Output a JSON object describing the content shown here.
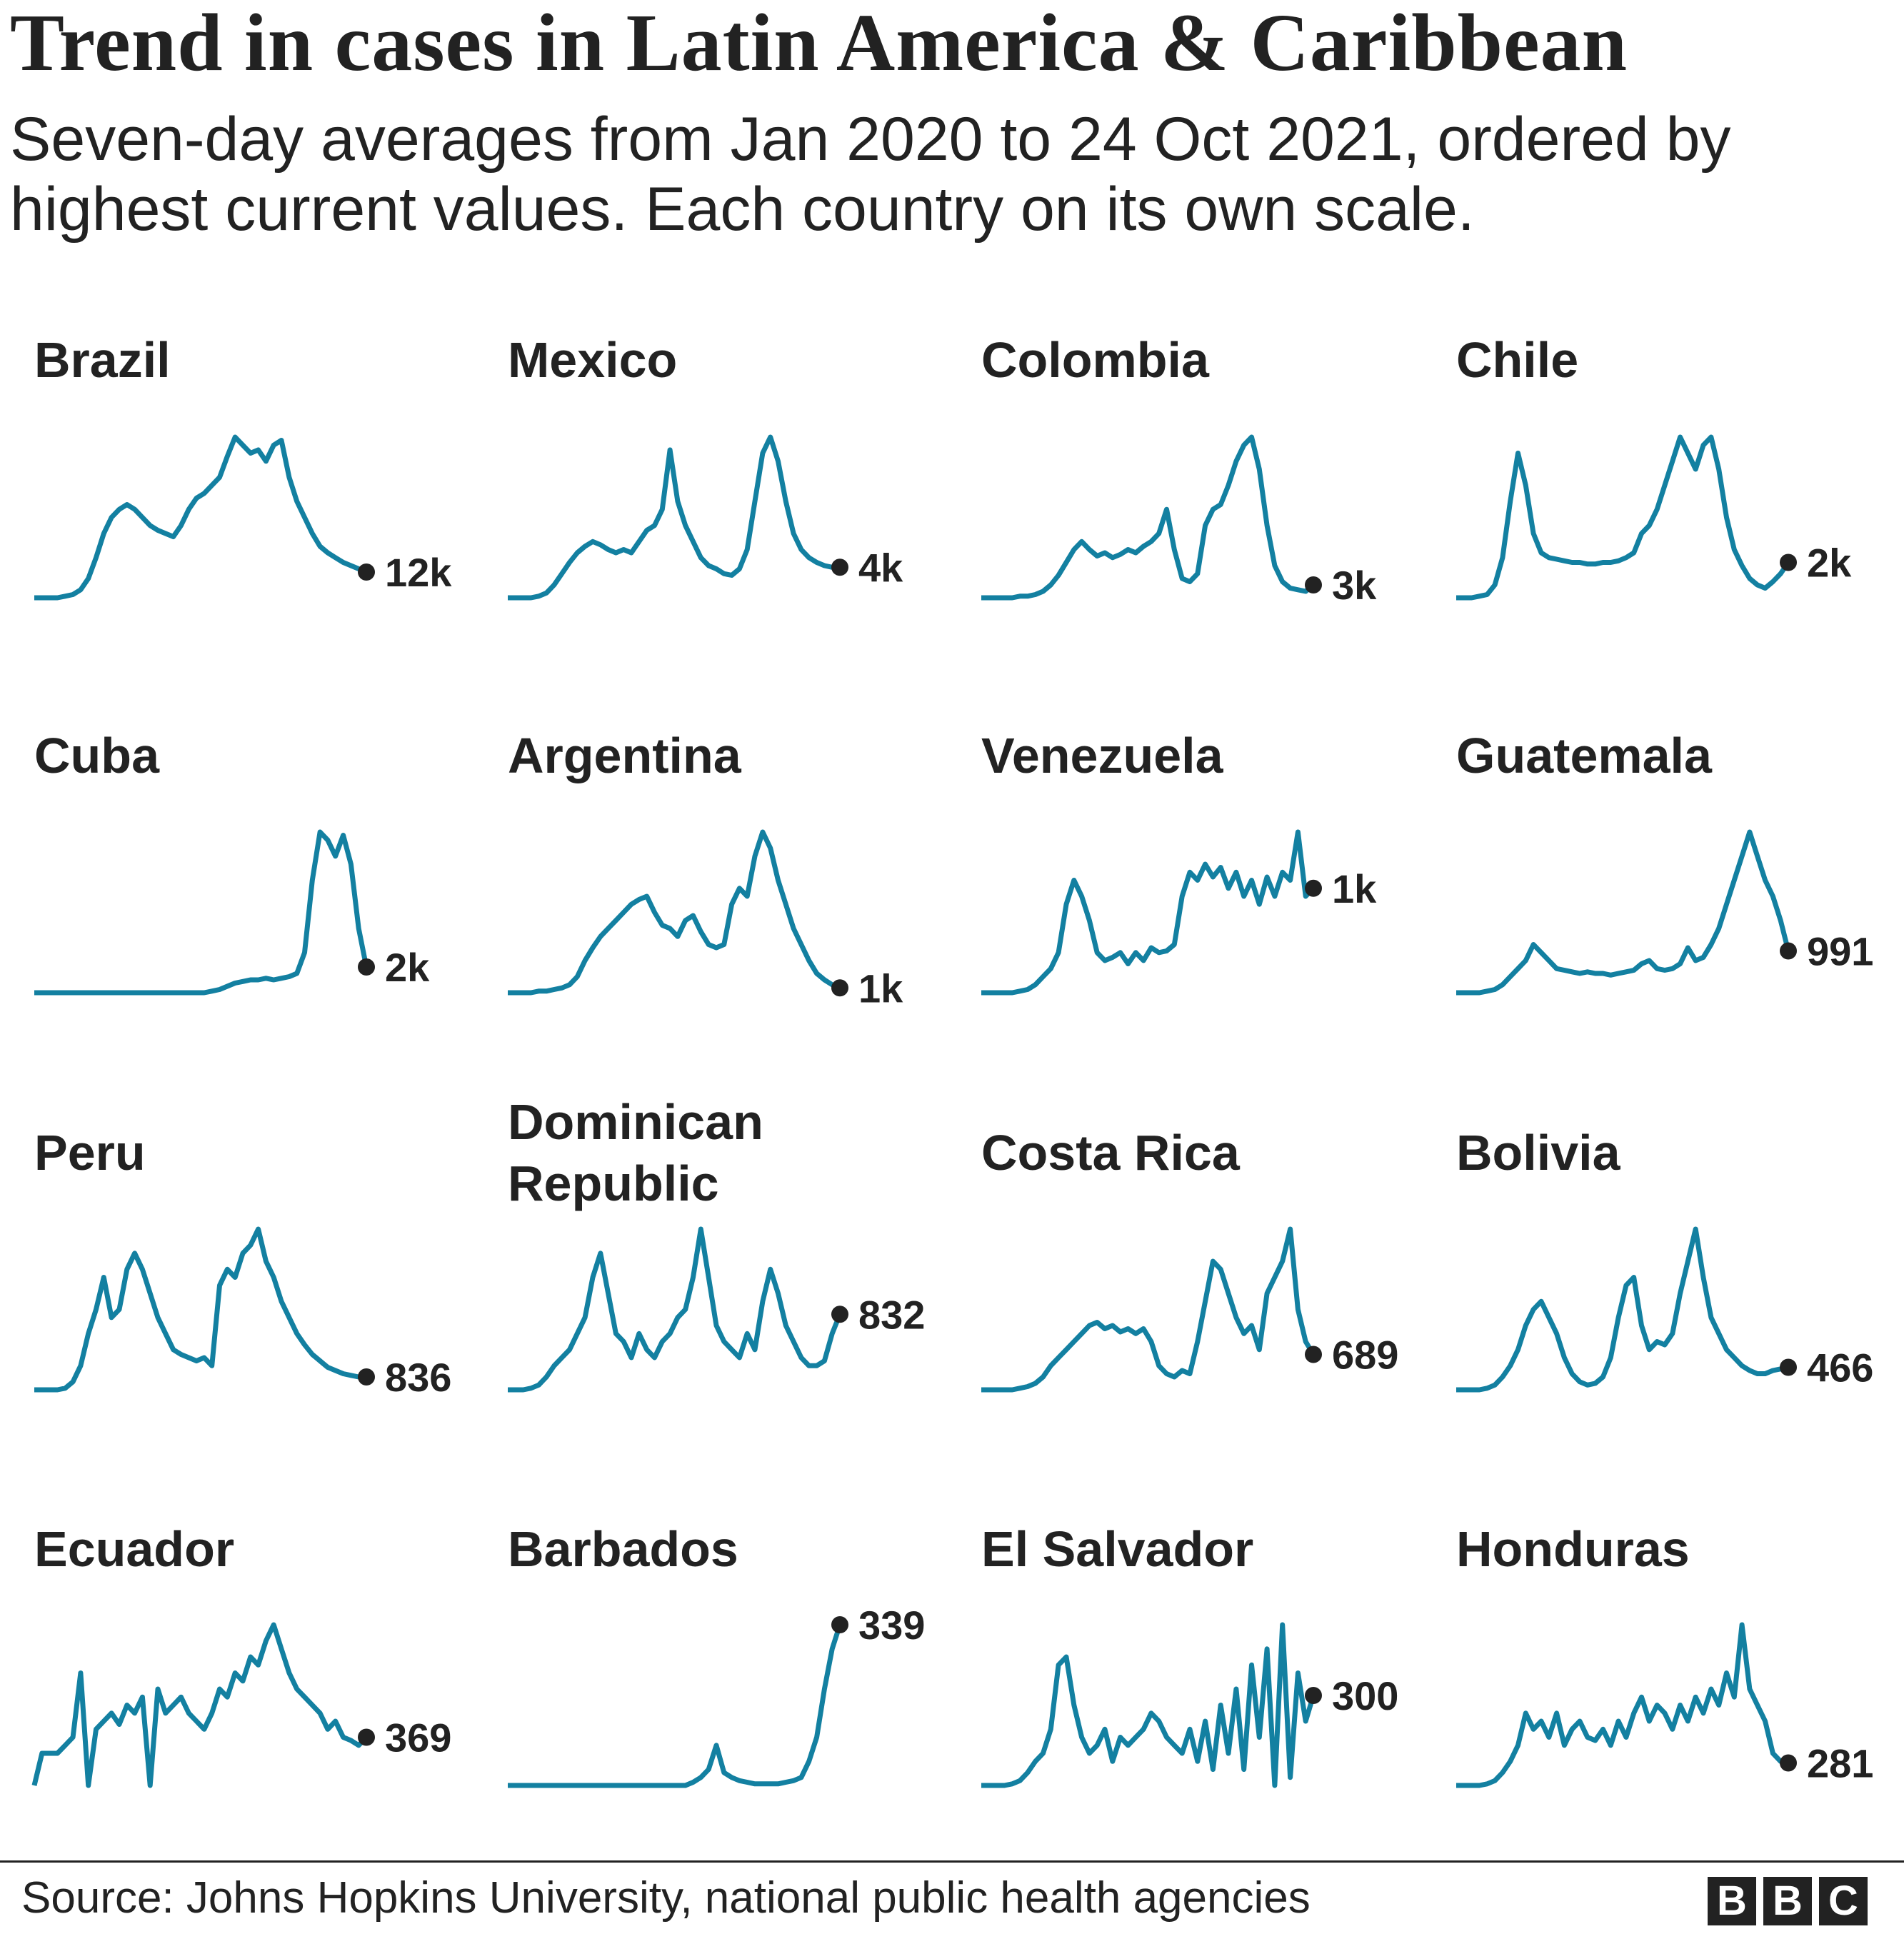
{
  "title": "Trend in cases in Latin America & Caribbean",
  "subtitle": "Seven-day averages from Jan 2020 to 24 Oct 2021, ordered by highest current values. Each country on its own scale.",
  "source": "Source: Johns Hopkins University, national public health agencies",
  "logo": [
    "B",
    "B",
    "C"
  ],
  "line_color": "#1380A1",
  "dot_color": "#222222",
  "chart_data": {
    "type": "line",
    "layout": "small-multiples 4x4",
    "x_range": [
      "Jan 2020",
      "24 Oct 2021"
    ],
    "grid": false,
    "series": [
      {
        "name": "Brazil",
        "latest_label": "12k",
        "values": [
          0,
          0,
          0,
          0,
          1,
          2,
          5,
          12,
          25,
          40,
          50,
          55,
          58,
          55,
          50,
          45,
          42,
          40,
          38,
          45,
          55,
          62,
          65,
          70,
          75,
          88,
          100,
          95,
          90,
          92,
          85,
          95,
          98,
          75,
          60,
          50,
          40,
          32,
          28,
          25,
          22,
          20,
          18,
          16
        ]
      },
      {
        "name": "Mexico",
        "latest_label": "4k",
        "values": [
          0,
          0,
          0,
          0,
          1,
          3,
          8,
          15,
          22,
          28,
          32,
          35,
          33,
          30,
          28,
          30,
          28,
          35,
          42,
          45,
          55,
          92,
          60,
          45,
          35,
          25,
          20,
          18,
          15,
          14,
          18,
          30,
          60,
          90,
          100,
          85,
          60,
          40,
          30,
          25,
          22,
          20,
          19,
          19
        ]
      },
      {
        "name": "Colombia",
        "latest_label": "3k",
        "values": [
          0,
          0,
          0,
          0,
          0,
          1,
          1,
          2,
          4,
          8,
          14,
          22,
          30,
          35,
          30,
          26,
          28,
          25,
          27,
          30,
          28,
          32,
          35,
          40,
          55,
          30,
          12,
          10,
          15,
          45,
          55,
          58,
          70,
          85,
          95,
          100,
          80,
          45,
          20,
          10,
          6,
          5,
          4,
          8
        ]
      },
      {
        "name": "Chile",
        "latest_label": "2k",
        "values": [
          0,
          0,
          0,
          1,
          2,
          8,
          25,
          60,
          90,
          70,
          40,
          28,
          25,
          24,
          23,
          22,
          22,
          21,
          21,
          22,
          22,
          23,
          25,
          28,
          40,
          45,
          55,
          70,
          85,
          100,
          90,
          80,
          95,
          100,
          80,
          50,
          30,
          20,
          12,
          8,
          6,
          10,
          15,
          22
        ]
      },
      {
        "name": "Cuba",
        "latest_label": "2k",
        "values": [
          0,
          0,
          0,
          0,
          0,
          0,
          0,
          0,
          0,
          0,
          0,
          0,
          0,
          0,
          0,
          0,
          0,
          0,
          0,
          0,
          0,
          0,
          0,
          1,
          2,
          4,
          6,
          7,
          8,
          8,
          9,
          8,
          9,
          10,
          12,
          25,
          70,
          100,
          95,
          85,
          98,
          80,
          40,
          16
        ]
      },
      {
        "name": "Argentina",
        "latest_label": "1k",
        "values": [
          0,
          0,
          0,
          0,
          1,
          1,
          2,
          3,
          5,
          10,
          20,
          28,
          35,
          40,
          45,
          50,
          55,
          58,
          60,
          50,
          42,
          40,
          35,
          45,
          48,
          38,
          30,
          28,
          30,
          55,
          65,
          60,
          85,
          100,
          90,
          70,
          55,
          40,
          30,
          20,
          12,
          8,
          5,
          3
        ]
      },
      {
        "name": "Venezuela",
        "latest_label": "1k",
        "values": [
          0,
          0,
          0,
          0,
          0,
          1,
          2,
          5,
          10,
          15,
          25,
          55,
          70,
          60,
          45,
          25,
          20,
          22,
          25,
          18,
          25,
          20,
          28,
          25,
          26,
          30,
          60,
          75,
          70,
          80,
          72,
          78,
          65,
          75,
          60,
          70,
          55,
          72,
          60,
          75,
          70,
          100,
          60,
          65
        ]
      },
      {
        "name": "Guatemala",
        "latest_label": "991",
        "values": [
          0,
          0,
          0,
          0,
          1,
          2,
          5,
          10,
          15,
          20,
          30,
          25,
          20,
          15,
          14,
          13,
          12,
          13,
          12,
          12,
          11,
          12,
          13,
          14,
          18,
          20,
          15,
          14,
          15,
          18,
          28,
          20,
          22,
          30,
          40,
          55,
          70,
          85,
          100,
          85,
          70,
          60,
          45,
          26
        ]
      },
      {
        "name": "Peru",
        "latest_label": "836",
        "values": [
          0,
          0,
          0,
          0,
          1,
          5,
          15,
          35,
          50,
          70,
          45,
          50,
          75,
          85,
          75,
          60,
          45,
          35,
          25,
          22,
          20,
          18,
          20,
          15,
          65,
          75,
          70,
          85,
          90,
          100,
          80,
          70,
          55,
          45,
          35,
          28,
          22,
          18,
          14,
          12,
          10,
          9,
          8,
          8
        ]
      },
      {
        "name": "Dominican\nRepublic",
        "latest_label": "832",
        "values": [
          0,
          0,
          0,
          1,
          3,
          8,
          15,
          20,
          25,
          35,
          45,
          70,
          85,
          60,
          35,
          30,
          20,
          35,
          25,
          20,
          30,
          35,
          45,
          50,
          70,
          100,
          70,
          40,
          30,
          25,
          20,
          35,
          25,
          55,
          75,
          60,
          40,
          30,
          20,
          15,
          15,
          18,
          35,
          47
        ]
      },
      {
        "name": "Costa Rica",
        "latest_label": "689",
        "values": [
          0,
          0,
          0,
          0,
          0,
          1,
          2,
          4,
          8,
          15,
          20,
          25,
          30,
          35,
          40,
          42,
          38,
          40,
          36,
          38,
          35,
          38,
          30,
          15,
          10,
          8,
          12,
          10,
          30,
          55,
          80,
          75,
          60,
          45,
          35,
          40,
          25,
          60,
          70,
          80,
          100,
          50,
          30,
          22
        ]
      },
      {
        "name": "Bolivia",
        "latest_label": "466",
        "values": [
          0,
          0,
          0,
          0,
          1,
          3,
          8,
          15,
          25,
          40,
          50,
          55,
          45,
          35,
          20,
          10,
          5,
          3,
          4,
          8,
          20,
          45,
          65,
          70,
          40,
          25,
          30,
          28,
          35,
          60,
          80,
          100,
          70,
          45,
          35,
          25,
          20,
          15,
          12,
          10,
          10,
          12,
          13,
          14
        ]
      },
      {
        "name": "Ecuador",
        "latest_label": "369",
        "values": [
          0,
          20,
          20,
          20,
          25,
          30,
          70,
          0,
          35,
          40,
          45,
          38,
          50,
          45,
          55,
          0,
          60,
          45,
          50,
          55,
          45,
          40,
          35,
          45,
          60,
          55,
          70,
          65,
          80,
          75,
          90,
          100,
          85,
          70,
          60,
          55,
          50,
          45,
          35,
          40,
          30,
          28,
          25,
          30
        ]
      },
      {
        "name": "Barbados",
        "latest_label": "339",
        "values": [
          0,
          0,
          0,
          0,
          0,
          0,
          0,
          0,
          0,
          0,
          0,
          0,
          0,
          0,
          0,
          0,
          0,
          0,
          0,
          0,
          0,
          0,
          0,
          0,
          2,
          5,
          10,
          25,
          8,
          5,
          3,
          2,
          1,
          1,
          1,
          1,
          2,
          3,
          5,
          15,
          30,
          60,
          85,
          100
        ]
      },
      {
        "name": "El Salvador",
        "latest_label": "300",
        "values": [
          0,
          0,
          0,
          0,
          1,
          3,
          8,
          15,
          20,
          35,
          75,
          80,
          50,
          30,
          20,
          25,
          35,
          15,
          30,
          25,
          30,
          35,
          45,
          40,
          30,
          25,
          20,
          35,
          15,
          40,
          10,
          50,
          20,
          60,
          10,
          75,
          30,
          85,
          0,
          100,
          5,
          70,
          40,
          56
        ]
      },
      {
        "name": "Honduras",
        "latest_label": "281",
        "values": [
          0,
          0,
          0,
          0,
          1,
          3,
          8,
          15,
          25,
          45,
          35,
          40,
          30,
          45,
          25,
          35,
          40,
          30,
          28,
          35,
          25,
          40,
          30,
          45,
          55,
          40,
          50,
          45,
          35,
          50,
          40,
          55,
          45,
          60,
          50,
          70,
          55,
          100,
          60,
          50,
          40,
          20,
          15,
          14
        ]
      }
    ]
  }
}
